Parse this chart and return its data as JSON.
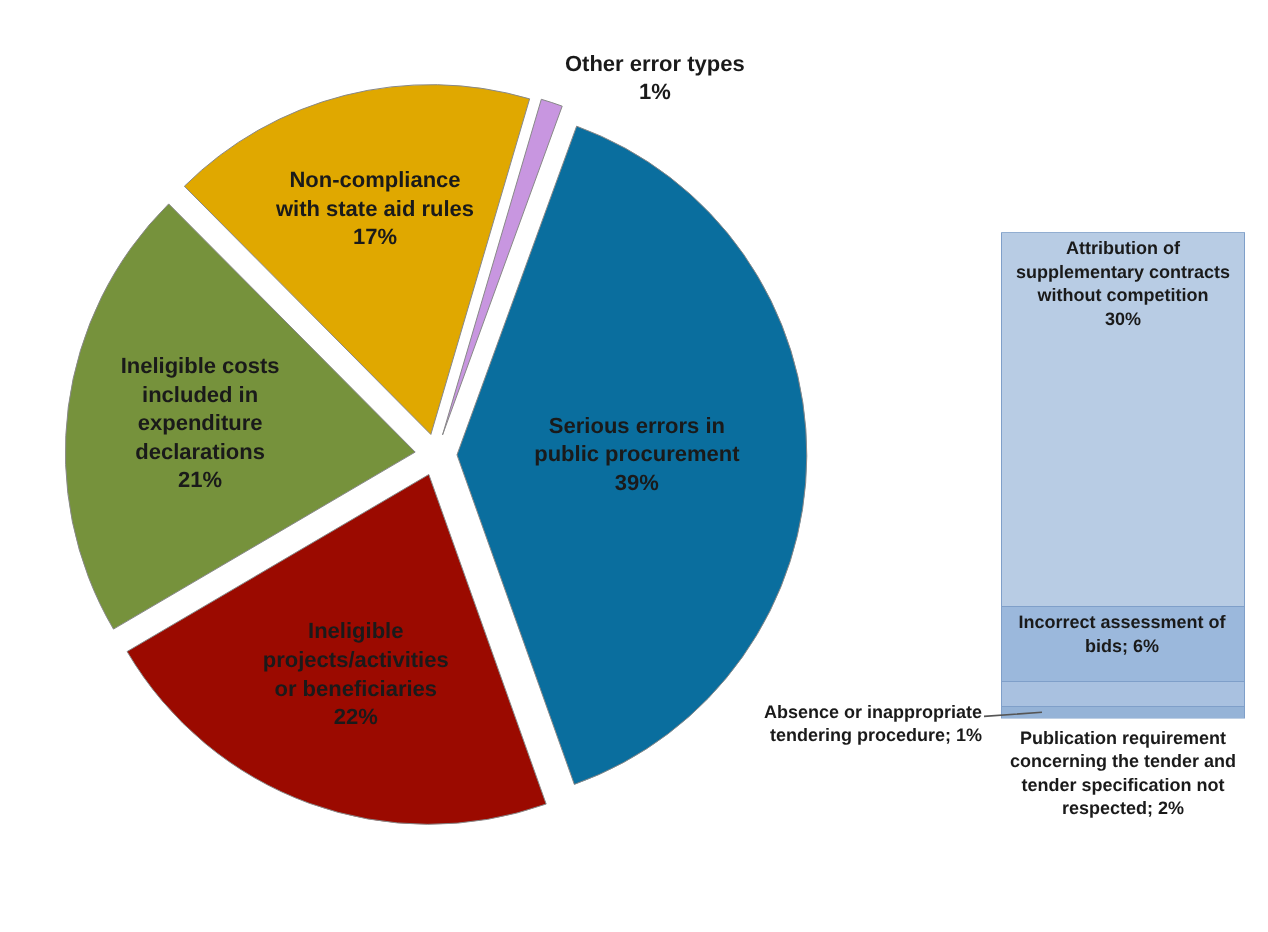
{
  "chart_data": [
    {
      "type": "pie",
      "categories": [
        "Serious errors in\npublic procurement",
        "Ineligible\nprojects/activities\nor beneficiaries",
        "Ineligible costs\nincluded in\nexpenditure\ndeclarations",
        "Non-compliance\nwith state aid rules",
        "Other error types"
      ],
      "values": [
        39,
        22,
        21,
        17,
        1
      ],
      "value_labels": [
        "39%",
        "22%",
        "21%",
        "17%",
        "1%"
      ],
      "colors": [
        "#0a6e9e",
        "#9b0a00",
        "#76923c",
        "#e0a800",
        "#c896e0"
      ]
    },
    {
      "type": "bar",
      "stacked": true,
      "categories": [
        null
      ],
      "series": [
        {
          "color": "#95b3d7",
          "values": [
            1
          ],
          "value_labels": [
            "Absence or inappropriate\ntendering procedure; 1%"
          ]
        },
        {
          "color": "#a9c1e0",
          "values": [
            2
          ],
          "value_labels": [
            "Publication requirement\nconcerning the tender and\ntender specification not\nrespected; 2%"
          ]
        },
        {
          "color": "#9bb8dc",
          "values": [
            6
          ],
          "value_labels": [
            "Incorrect assessment of\nbids; 6%"
          ]
        },
        {
          "color": "#b8cce4",
          "values": [
            30
          ],
          "value_labels": [
            "Attribution of\nsupplementary contracts\nwithout competition\n30%"
          ]
        }
      ]
    }
  ]
}
